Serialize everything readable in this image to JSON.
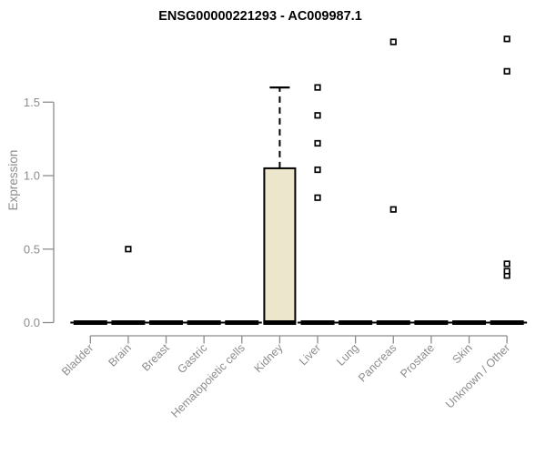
{
  "chart_data": {
    "type": "boxplot",
    "title": "ENSG00000221293 - AC009987.1",
    "ylabel": "Expression",
    "xlabel": "",
    "yticks": [
      0,
      0.5,
      1.0,
      1.5
    ],
    "ytick_labels": [
      "0.0",
      "0.5",
      "1.0",
      "1.5"
    ],
    "ylim": [
      0,
      2.0
    ],
    "grid": false,
    "legend": "none",
    "categories": [
      "Bladder",
      "Brain",
      "Breast",
      "Gastric",
      "Hematopoietic cells",
      "Kidney",
      "Liver",
      "Lung",
      "Pancreas",
      "Prostate",
      "Skin",
      "Unknown / Other"
    ],
    "boxes": [
      {
        "category": "Bladder",
        "whisker_low": 0,
        "q1": 0,
        "median": 0,
        "q3": 0,
        "whisker_high": 0,
        "outliers": []
      },
      {
        "category": "Brain",
        "whisker_low": 0,
        "q1": 0,
        "median": 0,
        "q3": 0,
        "whisker_high": 0,
        "outliers": [
          0.5
        ]
      },
      {
        "category": "Breast",
        "whisker_low": 0,
        "q1": 0,
        "median": 0,
        "q3": 0,
        "whisker_high": 0,
        "outliers": []
      },
      {
        "category": "Gastric",
        "whisker_low": 0,
        "q1": 0,
        "median": 0,
        "q3": 0,
        "whisker_high": 0,
        "outliers": []
      },
      {
        "category": "Hematopoietic cells",
        "whisker_low": 0,
        "q1": 0,
        "median": 0,
        "q3": 0,
        "whisker_high": 0,
        "outliers": []
      },
      {
        "category": "Kidney",
        "whisker_low": 0,
        "q1": 0,
        "median": 0,
        "q3": 1.05,
        "whisker_high": 1.6,
        "outliers": []
      },
      {
        "category": "Liver",
        "whisker_low": 0,
        "q1": 0,
        "median": 0,
        "q3": 0,
        "whisker_high": 0,
        "outliers": [
          0.85,
          1.04,
          1.22,
          1.41,
          1.6
        ]
      },
      {
        "category": "Lung",
        "whisker_low": 0,
        "q1": 0,
        "median": 0,
        "q3": 0,
        "whisker_high": 0,
        "outliers": []
      },
      {
        "category": "Pancreas",
        "whisker_low": 0,
        "q1": 0,
        "median": 0,
        "q3": 0,
        "whisker_high": 0,
        "outliers": [
          0.77,
          1.91
        ]
      },
      {
        "category": "Prostate",
        "whisker_low": 0,
        "q1": 0,
        "median": 0,
        "q3": 0,
        "whisker_high": 0,
        "outliers": []
      },
      {
        "category": "Skin",
        "whisker_low": 0,
        "q1": 0,
        "median": 0,
        "q3": 0,
        "whisker_high": 0,
        "outliers": []
      },
      {
        "category": "Unknown / Other",
        "whisker_low": 0,
        "q1": 0,
        "median": 0,
        "q3": 0,
        "whisker_high": 0,
        "outliers": [
          0.32,
          0.35,
          0.4,
          1.71,
          1.93
        ]
      }
    ],
    "outlier_marker": "open-square",
    "colors": {
      "box_fill": "#ECE6CC",
      "box_stroke": "#000000",
      "median": "#000000",
      "axis": "#8C8C8C",
      "tick_text": "#8C8C8C",
      "title_text": "#000000",
      "background": "#FFFFFF"
    }
  }
}
